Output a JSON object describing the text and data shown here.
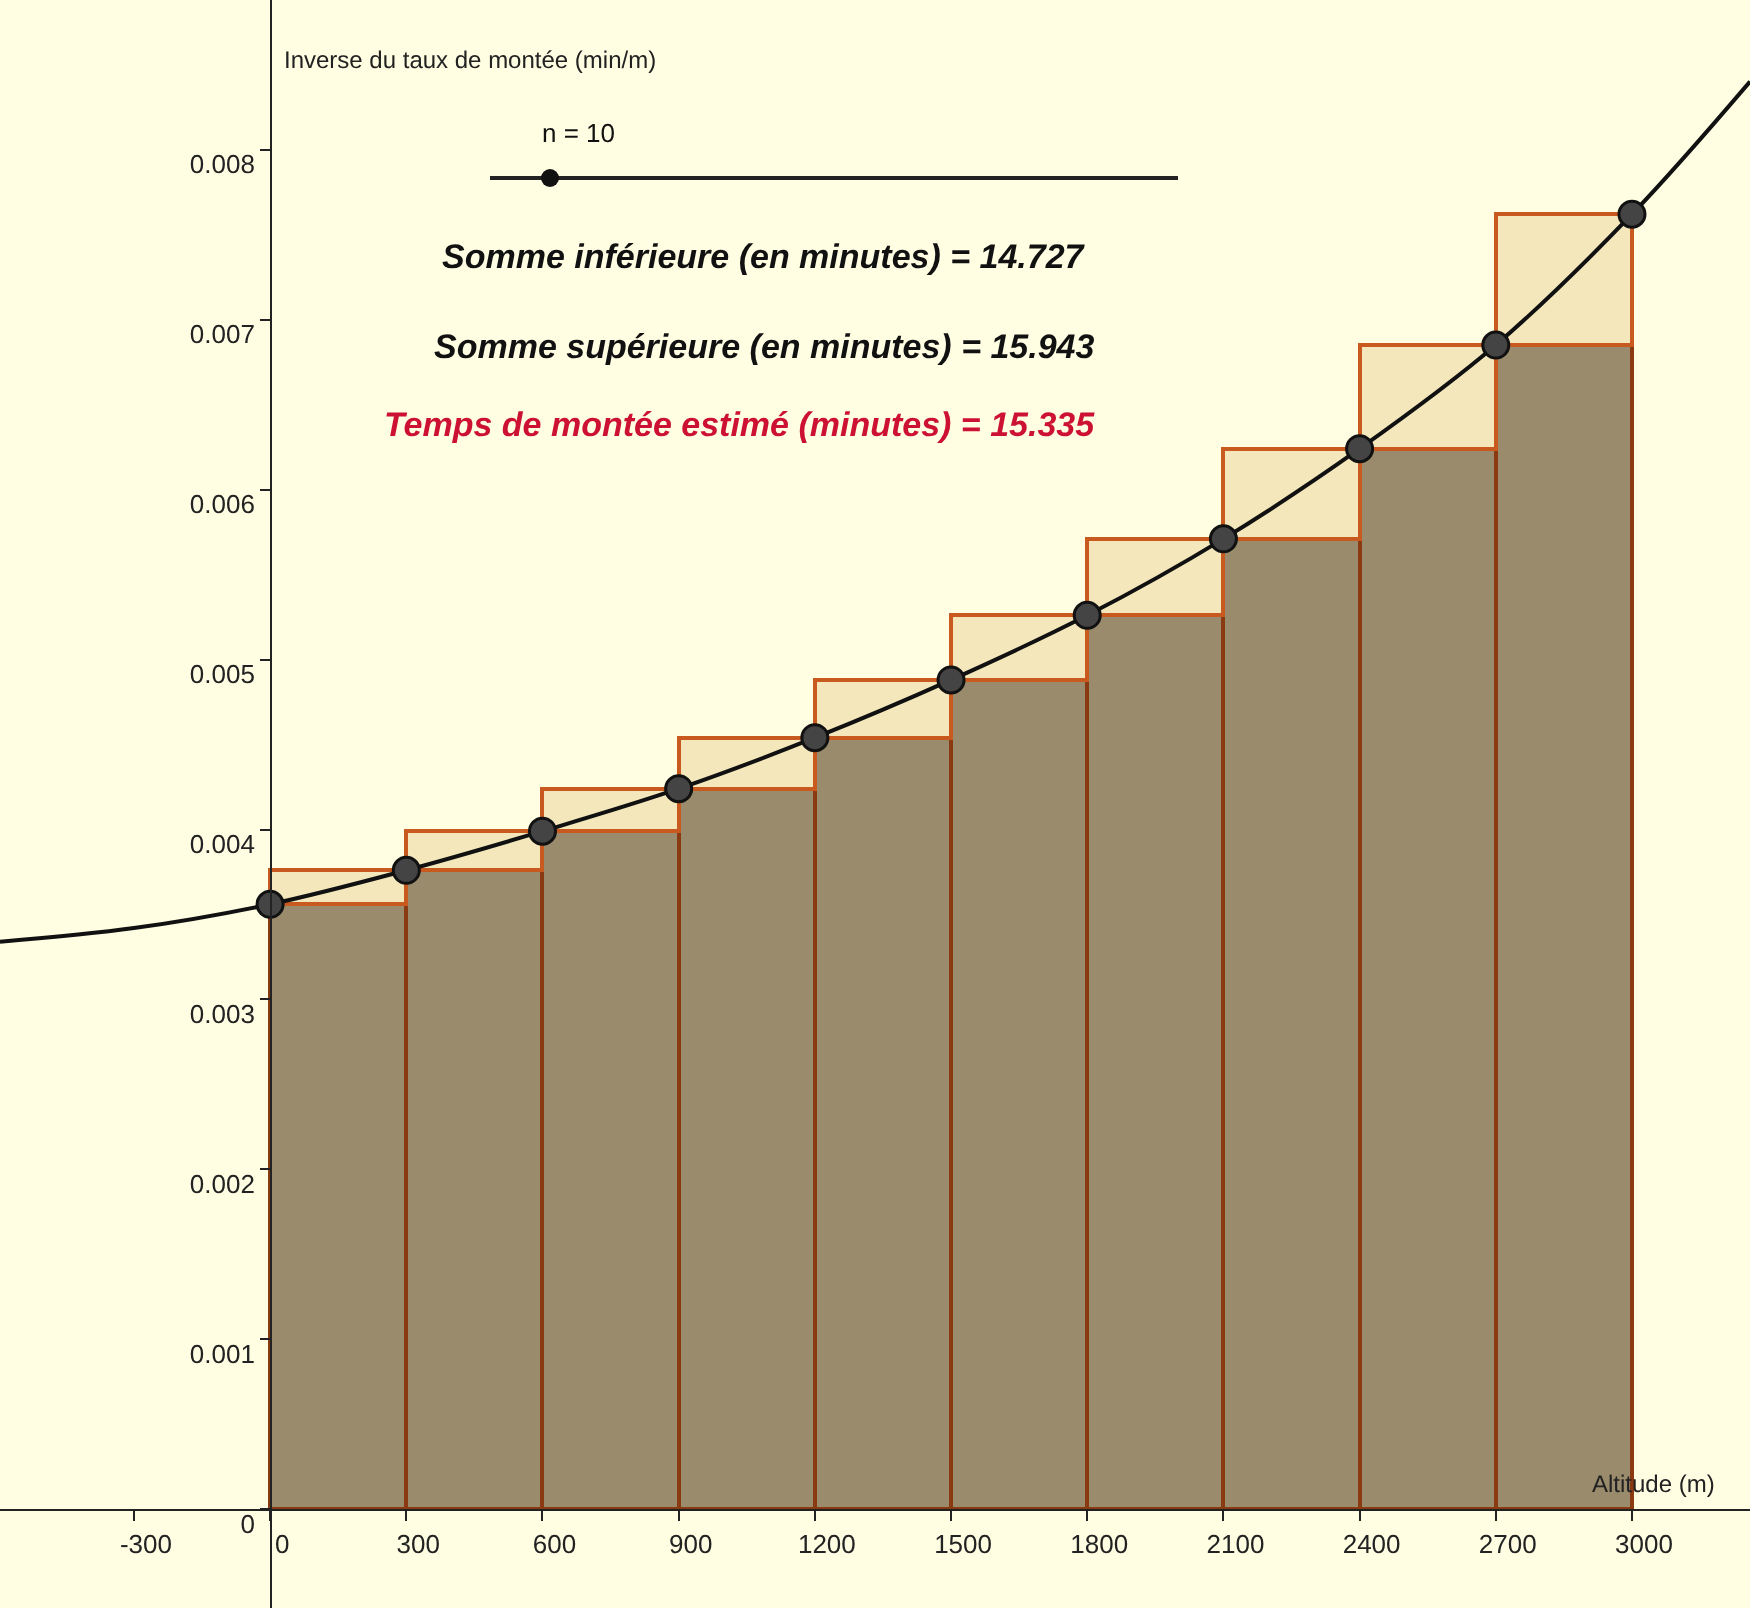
{
  "chart_data": {
    "type": "bar",
    "xlabel": "Altitude (m)",
    "ylabel": "Inverse du taux de montée (min/m)",
    "annotations": [
      "n = 10",
      "Somme inférieure (en minutes) = 14.727",
      "Somme supérieure (en minutes) = 15.943",
      "Temps de montée estimé (minutes) = 15.335"
    ],
    "xlim": [
      -595,
      3260
    ],
    "ylim": [
      -0.00058,
      0.00888
    ],
    "xticks": [
      -300,
      0,
      300,
      600,
      900,
      1200,
      1500,
      1800,
      2100,
      2400,
      2700,
      3000
    ],
    "yticks": [
      0,
      0.001,
      0.002,
      0.003,
      0.004,
      0.005,
      0.006,
      0.007,
      0.008
    ],
    "grid": false,
    "legend": false,
    "stacked": true,
    "series": [
      {
        "type": "bar",
        "color": "#998b6c",
        "x": [
          150,
          450,
          750,
          1050,
          1350,
          1650,
          1950,
          2250,
          2550,
          2850
        ],
        "values": [
          0.00356,
          0.00376,
          0.00399,
          0.00424,
          0.00454,
          0.00488,
          0.00526,
          0.00571,
          0.00624,
          0.00685
        ]
      },
      {
        "type": "bar",
        "color": "#f3e7bb",
        "x": [
          150,
          450,
          750,
          1050,
          1350,
          1650,
          1950,
          2250,
          2550,
          2850
        ],
        "values": [
          0.0002,
          0.00023,
          0.00025,
          0.0003,
          0.00034,
          0.00038,
          0.00045,
          0.00053,
          0.00061,
          0.00077
        ]
      },
      {
        "type": "line",
        "color": "#111111",
        "marker": "none",
        "x": [
          -595,
          -300,
          0,
          300,
          600,
          900,
          1200,
          1500,
          1800,
          2100,
          2400,
          2700,
          3000,
          3260
        ],
        "values": [
          0.00334,
          0.00342,
          0.00356,
          0.00376,
          0.00399,
          0.00424,
          0.00454,
          0.00488,
          0.00526,
          0.00571,
          0.00624,
          0.00685,
          0.00762,
          0.0084
        ]
      },
      {
        "type": "scatter",
        "color": "#444444",
        "marker": "circle",
        "x": [
          0,
          300,
          600,
          900,
          1200,
          1500,
          1800,
          2100,
          2400,
          2700,
          3000
        ],
        "values": [
          0.00356,
          0.00376,
          0.00399,
          0.00424,
          0.00454,
          0.00488,
          0.00526,
          0.00571,
          0.00624,
          0.00685,
          0.00762
        ]
      }
    ]
  }
}
